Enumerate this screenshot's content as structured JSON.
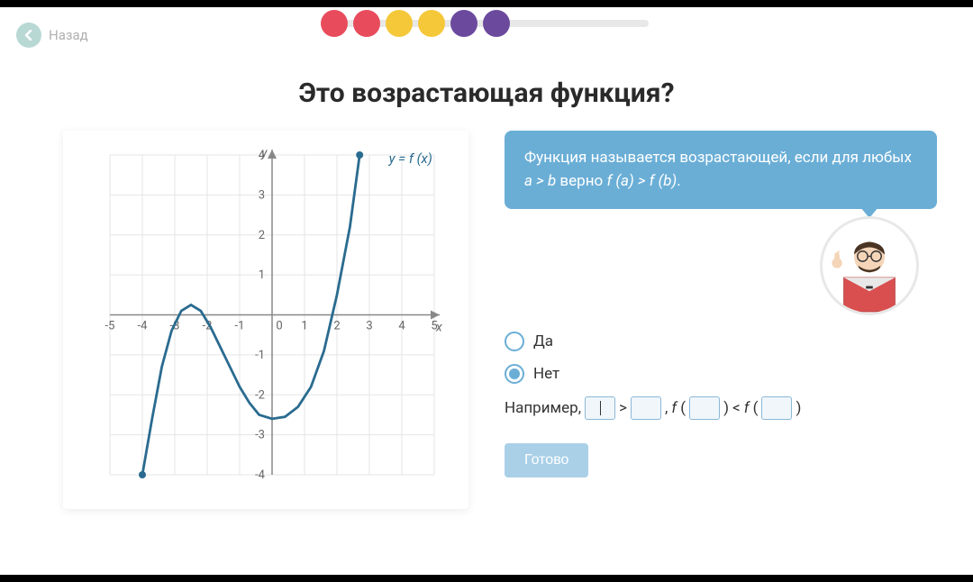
{
  "nav": {
    "back_label": "Назад"
  },
  "progress": {
    "track_color": "#e8e8e8",
    "dots": [
      "#e84c5c",
      "#e84c5c",
      "#f5c83a",
      "#f5c83a",
      "#6b4a9e",
      "#6b4a9e"
    ]
  },
  "title": "Это возрастающая функция?",
  "chart": {
    "x_range": [
      -5,
      5
    ],
    "y_range": [
      -4,
      4
    ],
    "x_ticks": [
      -5,
      -4,
      -3,
      -2,
      -1,
      0,
      1,
      2,
      3,
      4,
      5
    ],
    "y_ticks": [
      -4,
      -3,
      -2,
      -1,
      1,
      2,
      3,
      4
    ],
    "y_axis_label": "y",
    "x_axis_label": "x",
    "func_label": "y = f (x)",
    "curve_color": "#2a6b8f",
    "grid_color": "#e5e5e5",
    "axis_color": "#888888",
    "curve_points": [
      [
        -4,
        -4
      ],
      [
        -3.7,
        -2.6
      ],
      [
        -3.4,
        -1.3
      ],
      [
        -3.1,
        -0.4
      ],
      [
        -2.8,
        0.1
      ],
      [
        -2.5,
        0.25
      ],
      [
        -2.2,
        0.1
      ],
      [
        -1.9,
        -0.3
      ],
      [
        -1.6,
        -0.8
      ],
      [
        -1.3,
        -1.3
      ],
      [
        -1.0,
        -1.8
      ],
      [
        -0.7,
        -2.2
      ],
      [
        -0.4,
        -2.5
      ],
      [
        0,
        -2.6
      ],
      [
        0.4,
        -2.55
      ],
      [
        0.8,
        -2.3
      ],
      [
        1.2,
        -1.8
      ],
      [
        1.6,
        -0.9
      ],
      [
        2.0,
        0.5
      ],
      [
        2.4,
        2.2
      ],
      [
        2.7,
        4.0
      ]
    ],
    "endpoints": [
      [
        -4,
        -4
      ],
      [
        2.7,
        4.0
      ]
    ]
  },
  "hint": {
    "text_parts": [
      "Функция называется возрастающей, если для любых ",
      "a > b",
      " верно ",
      "f (a) > f (b)",
      "."
    ],
    "bg": "#6aaed6"
  },
  "options": {
    "yes": "Да",
    "no": "Нет",
    "selected": "no"
  },
  "example": {
    "prefix": "Например,",
    "gt": ">",
    "lt": "<",
    "fn": "f"
  },
  "done_label": "Готово",
  "colors": {
    "accent": "#6aaed6",
    "done_bg": "#aad0e8"
  }
}
